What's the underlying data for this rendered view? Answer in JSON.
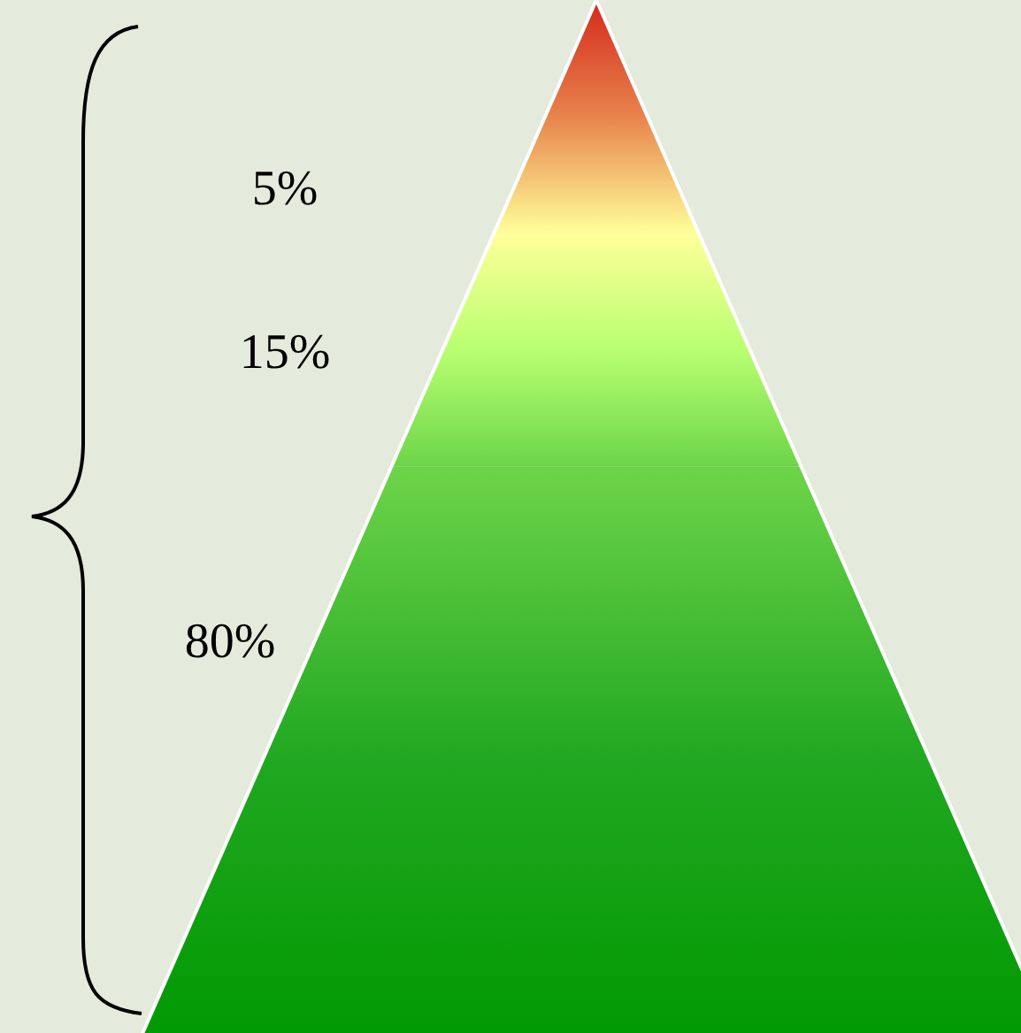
{
  "chart_data": {
    "type": "other",
    "categories": [
      null,
      null,
      null
    ],
    "values": [
      5,
      15,
      80
    ],
    "value_labels": [
      "5%",
      "15%",
      "80%"
    ],
    "colors": [
      "#e8834c",
      "#b8ff70",
      "#22a822"
    ]
  }
}
